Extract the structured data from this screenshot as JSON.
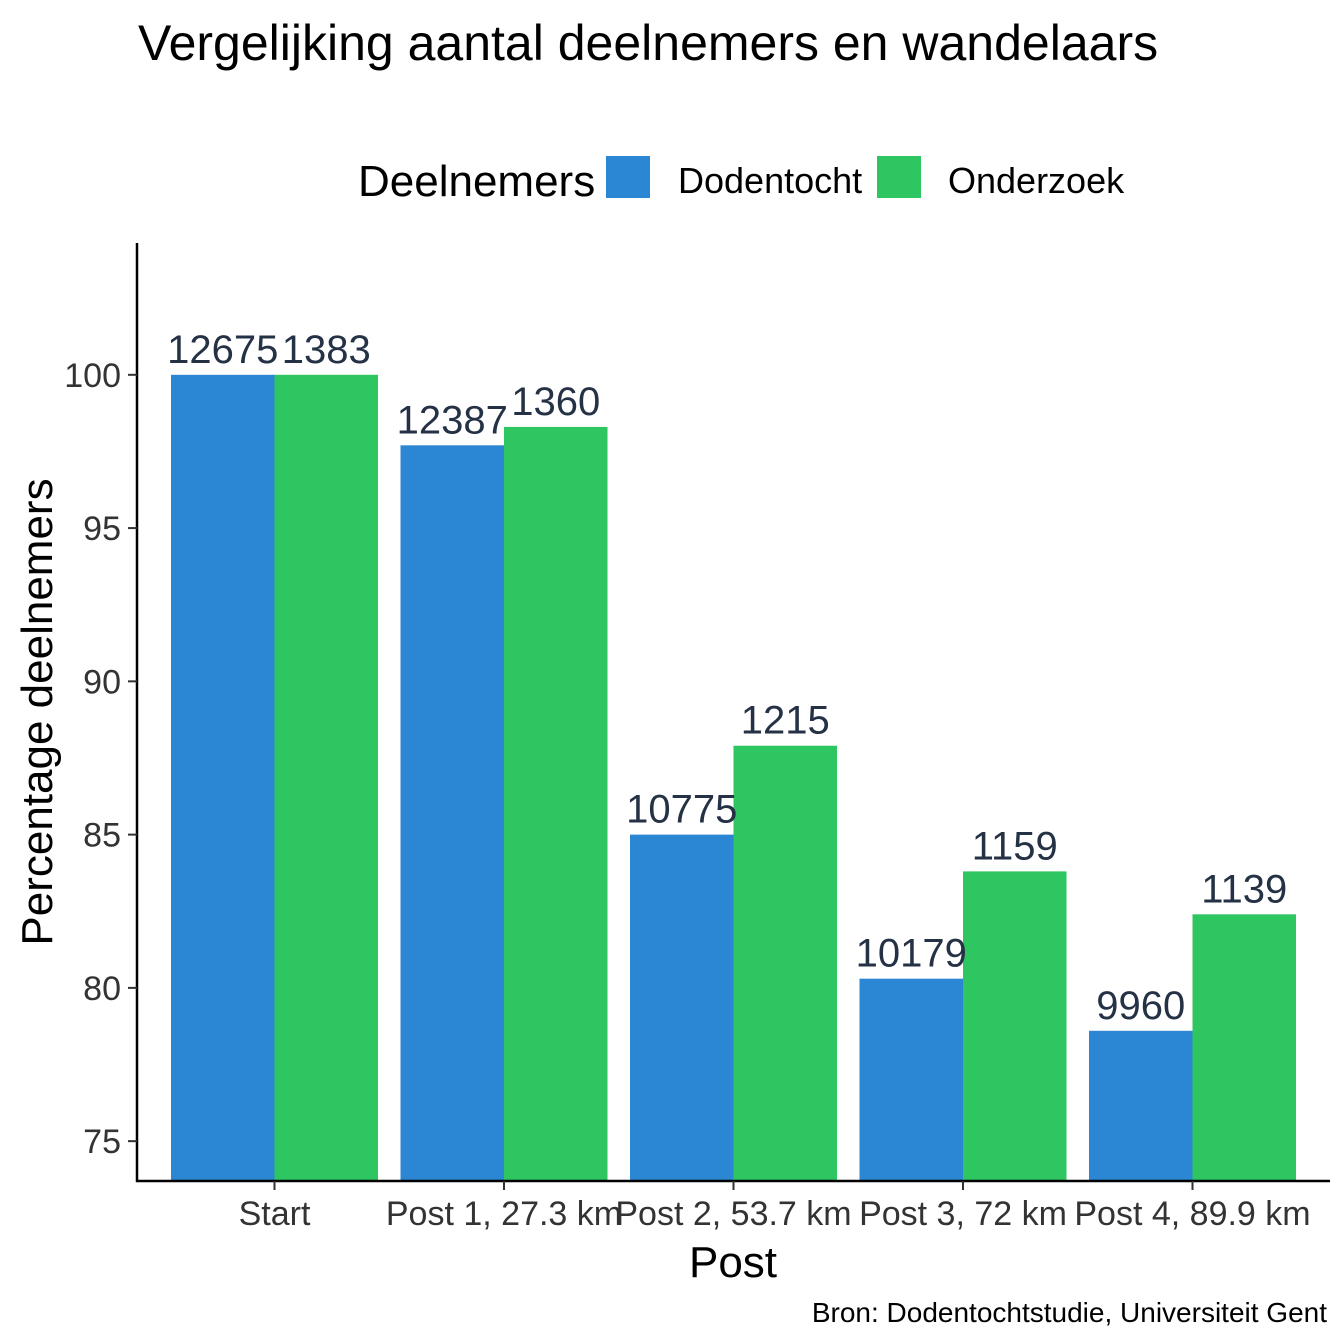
{
  "chart_data": {
    "type": "bar",
    "title": "Vergelijking aantal deelnemers en wandelaars",
    "xlabel": "Post",
    "ylabel": "Percentage deelnemers",
    "caption": "Bron: Dodentochtstudie, Universiteit Gent",
    "legend": {
      "title": "Deelnemers",
      "position": "top"
    },
    "categories": [
      "Start",
      "Post 1, 27.3 km",
      "Post 2, 53.7 km",
      "Post 3, 72 km",
      "Post 4, 89.9 km"
    ],
    "series": [
      {
        "name": "Dodentocht",
        "color": "#2B86D3",
        "values": [
          100,
          97.7,
          85.0,
          80.3,
          78.6
        ],
        "labels": [
          "12675",
          "12387",
          "10775",
          "10179",
          "9960"
        ]
      },
      {
        "name": "Onderzoek",
        "color": "#2EC660",
        "values": [
          100,
          98.3,
          87.9,
          83.8,
          82.4
        ],
        "labels": [
          "1383",
          "1360",
          "1215",
          "1159",
          "1139"
        ]
      }
    ],
    "yticks": [
      75,
      80,
      85,
      90,
      95,
      100
    ],
    "ylim": [
      73.7,
      104.3
    ],
    "grid": false
  }
}
